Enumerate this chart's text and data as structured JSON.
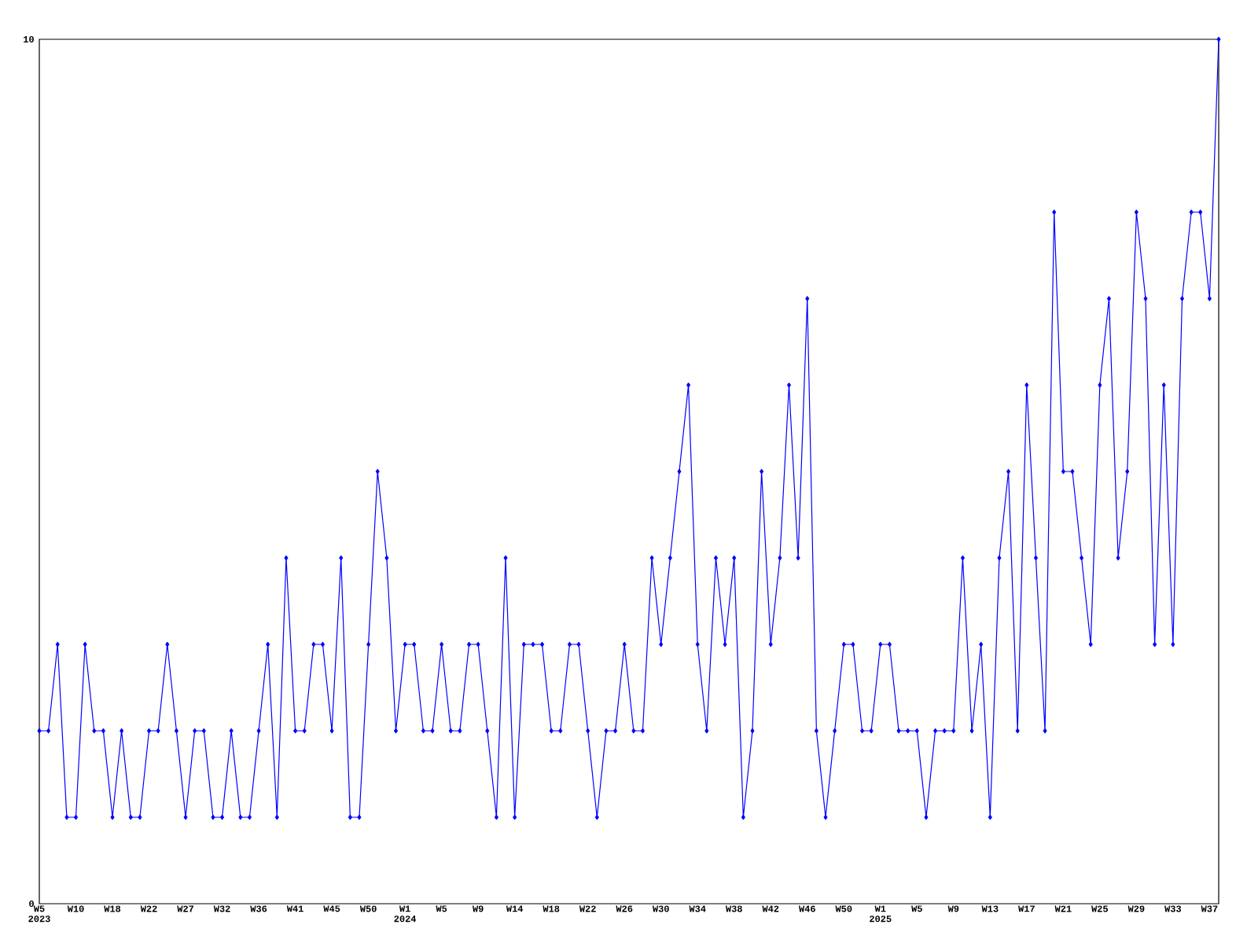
{
  "chart_data": {
    "type": "line",
    "categories": [
      "W5 2023",
      null,
      null,
      null,
      "W10",
      null,
      null,
      null,
      "W18",
      null,
      null,
      null,
      "W22",
      null,
      null,
      null,
      "W27",
      null,
      null,
      null,
      "W32",
      null,
      null,
      null,
      "W36",
      null,
      null,
      null,
      "W41",
      null,
      null,
      null,
      "W45",
      null,
      null,
      null,
      "W50",
      null,
      null,
      null,
      "W1 2024",
      null,
      null,
      null,
      "W5",
      null,
      null,
      null,
      "W9",
      null,
      null,
      null,
      "W14",
      null,
      null,
      null,
      "W18",
      null,
      null,
      null,
      "W22",
      null,
      null,
      null,
      "W26",
      null,
      null,
      null,
      "W30",
      null,
      null,
      null,
      "W34",
      null,
      null,
      null,
      "W38",
      null,
      null,
      null,
      "W42",
      null,
      null,
      null,
      "W46",
      null,
      null,
      null,
      "W50",
      null,
      null,
      null,
      "W1 2025",
      null,
      null,
      null,
      "W5",
      null,
      null,
      null,
      "W9",
      null,
      null,
      null,
      "W13",
      null,
      null,
      null,
      "W17",
      null,
      null,
      null,
      "W21",
      null,
      null,
      null,
      "W25",
      null,
      null,
      null,
      "W29",
      null,
      null,
      null,
      "W33",
      null,
      null,
      null,
      "W37",
      null
    ],
    "series": [
      {
        "color": "#0000ff",
        "values": [
          2,
          2,
          3,
          1,
          1,
          3,
          2,
          2,
          1,
          2,
          1,
          1,
          2,
          2,
          3,
          2,
          1,
          2,
          2,
          1,
          1,
          2,
          1,
          1,
          2,
          3,
          1,
          4,
          2,
          2,
          3,
          3,
          2,
          4,
          1,
          1,
          3,
          5,
          4,
          2,
          3,
          3,
          2,
          2,
          3,
          2,
          2,
          3,
          3,
          2,
          1,
          4,
          1,
          3,
          3,
          3,
          2,
          2,
          3,
          3,
          2,
          1,
          2,
          2,
          3,
          2,
          2,
          4,
          3,
          4,
          5,
          6,
          3,
          2,
          4,
          3,
          4,
          1,
          2,
          5,
          3,
          4,
          6,
          4,
          7,
          2,
          1,
          2,
          3,
          3,
          2,
          2,
          3,
          3,
          2,
          2,
          2,
          1,
          2,
          2,
          2,
          4,
          2,
          3,
          1,
          4,
          5,
          2,
          6,
          4,
          2,
          8,
          5,
          5,
          4,
          3,
          6,
          7,
          4,
          5,
          8,
          7,
          3,
          6,
          3,
          7,
          8,
          8,
          7,
          10
        ]
      }
    ],
    "ylim": [
      0,
      10
    ],
    "yticks": [
      0,
      10
    ],
    "grid": false,
    "marker": "diamond",
    "line_style": "solid"
  }
}
